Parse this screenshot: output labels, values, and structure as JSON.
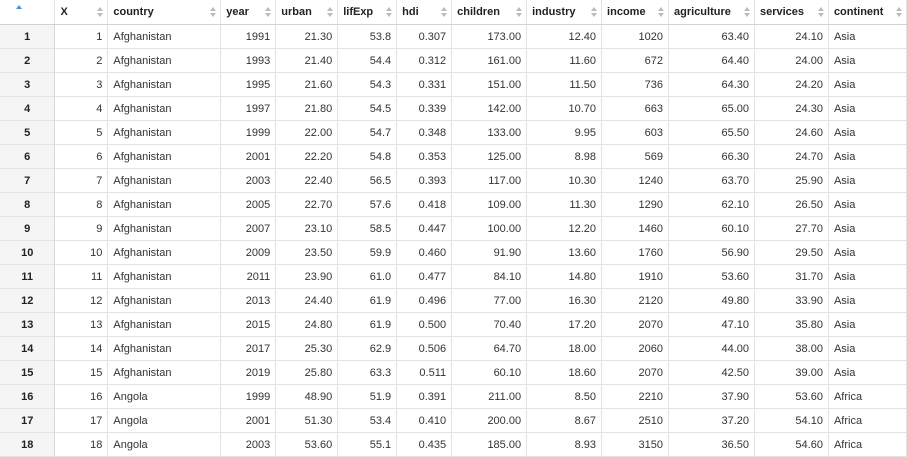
{
  "columns": [
    {
      "key": "rownum",
      "label": "",
      "sort": "asc-indicator"
    },
    {
      "key": "X",
      "label": "X"
    },
    {
      "key": "country",
      "label": "country"
    },
    {
      "key": "year",
      "label": "year"
    },
    {
      "key": "urban",
      "label": "urban"
    },
    {
      "key": "lifExp",
      "label": "lifExp"
    },
    {
      "key": "hdi",
      "label": "hdi"
    },
    {
      "key": "children",
      "label": "children"
    },
    {
      "key": "industry",
      "label": "industry"
    },
    {
      "key": "income",
      "label": "income"
    },
    {
      "key": "agriculture",
      "label": "agriculture"
    },
    {
      "key": "services",
      "label": "services"
    },
    {
      "key": "continent",
      "label": "continent"
    }
  ],
  "rows": [
    [
      "1",
      "1",
      "Afghanistan",
      "1991",
      "21.30",
      "53.8",
      "0.307",
      "173.00",
      "12.40",
      "1020",
      "63.40",
      "24.10",
      "Asia"
    ],
    [
      "2",
      "2",
      "Afghanistan",
      "1993",
      "21.40",
      "54.4",
      "0.312",
      "161.00",
      "11.60",
      "672",
      "64.40",
      "24.00",
      "Asia"
    ],
    [
      "3",
      "3",
      "Afghanistan",
      "1995",
      "21.60",
      "54.3",
      "0.331",
      "151.00",
      "11.50",
      "736",
      "64.30",
      "24.20",
      "Asia"
    ],
    [
      "4",
      "4",
      "Afghanistan",
      "1997",
      "21.80",
      "54.5",
      "0.339",
      "142.00",
      "10.70",
      "663",
      "65.00",
      "24.30",
      "Asia"
    ],
    [
      "5",
      "5",
      "Afghanistan",
      "1999",
      "22.00",
      "54.7",
      "0.348",
      "133.00",
      "9.95",
      "603",
      "65.50",
      "24.60",
      "Asia"
    ],
    [
      "6",
      "6",
      "Afghanistan",
      "2001",
      "22.20",
      "54.8",
      "0.353",
      "125.00",
      "8.98",
      "569",
      "66.30",
      "24.70",
      "Asia"
    ],
    [
      "7",
      "7",
      "Afghanistan",
      "2003",
      "22.40",
      "56.5",
      "0.393",
      "117.00",
      "10.30",
      "1240",
      "63.70",
      "25.90",
      "Asia"
    ],
    [
      "8",
      "8",
      "Afghanistan",
      "2005",
      "22.70",
      "57.6",
      "0.418",
      "109.00",
      "11.30",
      "1290",
      "62.10",
      "26.50",
      "Asia"
    ],
    [
      "9",
      "9",
      "Afghanistan",
      "2007",
      "23.10",
      "58.5",
      "0.447",
      "100.00",
      "12.20",
      "1460",
      "60.10",
      "27.70",
      "Asia"
    ],
    [
      "10",
      "10",
      "Afghanistan",
      "2009",
      "23.50",
      "59.9",
      "0.460",
      "91.90",
      "13.60",
      "1760",
      "56.90",
      "29.50",
      "Asia"
    ],
    [
      "11",
      "11",
      "Afghanistan",
      "2011",
      "23.90",
      "61.0",
      "0.477",
      "84.10",
      "14.80",
      "1910",
      "53.60",
      "31.70",
      "Asia"
    ],
    [
      "12",
      "12",
      "Afghanistan",
      "2013",
      "24.40",
      "61.9",
      "0.496",
      "77.00",
      "16.30",
      "2120",
      "49.80",
      "33.90",
      "Asia"
    ],
    [
      "13",
      "13",
      "Afghanistan",
      "2015",
      "24.80",
      "61.9",
      "0.500",
      "70.40",
      "17.20",
      "2070",
      "47.10",
      "35.80",
      "Asia"
    ],
    [
      "14",
      "14",
      "Afghanistan",
      "2017",
      "25.30",
      "62.9",
      "0.506",
      "64.70",
      "18.00",
      "2060",
      "44.00",
      "38.00",
      "Asia"
    ],
    [
      "15",
      "15",
      "Afghanistan",
      "2019",
      "25.80",
      "63.3",
      "0.511",
      "60.10",
      "18.60",
      "2070",
      "42.50",
      "39.00",
      "Asia"
    ],
    [
      "16",
      "16",
      "Angola",
      "1999",
      "48.90",
      "51.9",
      "0.391",
      "211.00",
      "8.50",
      "2210",
      "37.90",
      "53.60",
      "Africa"
    ],
    [
      "17",
      "17",
      "Angola",
      "2001",
      "51.30",
      "53.4",
      "0.410",
      "200.00",
      "8.67",
      "2510",
      "37.20",
      "54.10",
      "Africa"
    ],
    [
      "18",
      "18",
      "Angola",
      "2003",
      "53.60",
      "55.1",
      "0.435",
      "185.00",
      "8.93",
      "3150",
      "36.50",
      "54.60",
      "Africa"
    ]
  ],
  "colors": {
    "accent": "#4a90d9",
    "sort_arrow": "#bbbbbb",
    "header_border": "#d2d2d2",
    "rownum_bg": "#f5f5f5"
  }
}
